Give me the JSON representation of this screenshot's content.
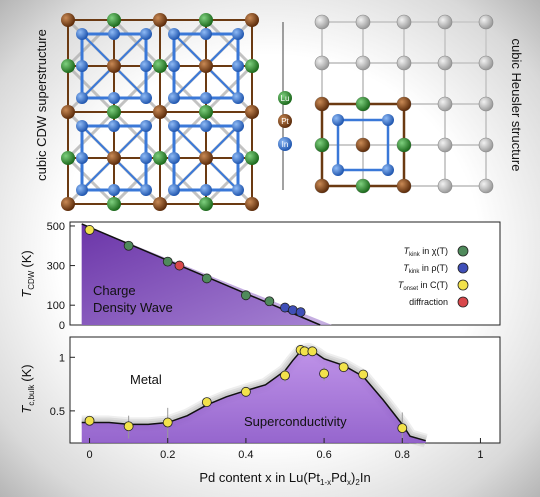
{
  "structures": {
    "left_label": "cubic CDW superstructure",
    "right_label": "cubic Heusler structure",
    "legend": [
      {
        "label": "Lu",
        "color": "#2e8b2e"
      },
      {
        "label": "Pt",
        "color": "#8b4513"
      },
      {
        "label": "In",
        "color": "#3a78d8"
      }
    ]
  },
  "colors": {
    "cdw_fill": "#7d4bb5",
    "cdw_fill_light": "#b69ad9",
    "sc_fill": "#b07fe0",
    "kink_chi": "#4f8a5b",
    "kink_rho": "#3f4fb8",
    "onset_c": "#f2e24b",
    "diffraction": "#d9484b"
  },
  "chart_data": [
    {
      "type": "scatter",
      "ylabel_main": "T",
      "ylabel_sub": "CDW",
      "ylabel_unit": "(K)",
      "ylim": [
        0,
        520
      ],
      "xlim": [
        -0.05,
        1.05
      ],
      "yticks": [
        0,
        100,
        300,
        500
      ],
      "yticklabels": [
        "0",
        "100",
        "300",
        "500"
      ],
      "region_label_line1": "Charge",
      "region_label_line2": "Density Wave",
      "boundary_line": {
        "x": [
          -0.02,
          0.59
        ],
        "y": [
          510,
          0
        ]
      },
      "legend": [
        {
          "main": "T",
          "sub": "kink",
          "rest": " in χ(T)",
          "key": "kink_chi"
        },
        {
          "main": "T",
          "sub": "kink",
          "rest": " in ρ(T)",
          "key": "kink_rho"
        },
        {
          "main": "T",
          "sub": "onset",
          "rest": " in C(T)",
          "key": "onset_c"
        },
        {
          "main": "",
          "sub": "",
          "rest": "diffraction",
          "key": "diffraction"
        }
      ],
      "series": [
        {
          "name": "T kink in χ(T)",
          "key": "kink_chi",
          "x": [
            0.1,
            0.2,
            0.3,
            0.4,
            0.46
          ],
          "y": [
            400,
            320,
            235,
            150,
            120
          ]
        },
        {
          "name": "T kink in ρ(T)",
          "key": "kink_rho",
          "x": [
            0.5,
            0.52,
            0.54
          ],
          "y": [
            88,
            75,
            65
          ]
        },
        {
          "name": "T onset in C(T)",
          "key": "onset_c",
          "x": [
            0.0
          ],
          "y": [
            480
          ]
        },
        {
          "name": "diffraction",
          "key": "diffraction",
          "x": [
            0.23
          ],
          "y": [
            300
          ]
        }
      ]
    },
    {
      "type": "scatter",
      "ylabel_main": "T",
      "ylabel_sub": "c,bulk",
      "ylabel_unit": "(K)",
      "ylog": true,
      "ylim": [
        0.33,
        1.3
      ],
      "xlim": [
        -0.05,
        1.05
      ],
      "yticks": [
        0.5,
        1
      ],
      "yticklabels": [
        "0.5",
        "1"
      ],
      "xticks": [
        0,
        0.2,
        0.4,
        0.6,
        0.8,
        1
      ],
      "xticklabels": [
        "0",
        "0.2",
        "0.4",
        "0.6",
        "0.8",
        "1"
      ],
      "xlabel": "Pd content x in Lu(Pt1-xPdx)2In",
      "xlabel_parts": {
        "a": "Pd content x in Lu(Pt",
        "sub1": "1-x",
        "b": "Pd",
        "sub2": "x",
        "c": ")",
        "sub3": "2",
        "d": "In"
      },
      "metal_label": "Metal",
      "sc_label": "Superconductivity",
      "series": [
        {
          "name": "T c,bulk",
          "key": "onset_c",
          "x": [
            0.0,
            0.1,
            0.2,
            0.3,
            0.4,
            0.5,
            0.54,
            0.55,
            0.57,
            0.6,
            0.65,
            0.7,
            0.8
          ],
          "y": [
            0.44,
            0.41,
            0.43,
            0.56,
            0.64,
            0.79,
            1.1,
            1.08,
            1.08,
            0.81,
            0.88,
            0.8,
            0.4
          ],
          "err": [
            0.02,
            0.06,
            0.09,
            0.02,
            0.02,
            0.06,
            0.04,
            0.03,
            0.04,
            0.07,
            0.03,
            0.04,
            0.09
          ]
        }
      ],
      "boundary_curve": {
        "x": [
          -0.02,
          0.05,
          0.1,
          0.15,
          0.2,
          0.25,
          0.3,
          0.35,
          0.4,
          0.45,
          0.5,
          0.52,
          0.54,
          0.56,
          0.58,
          0.6,
          0.65,
          0.7,
          0.75,
          0.8,
          0.82,
          0.86
        ],
        "y": [
          0.43,
          0.43,
          0.42,
          0.42,
          0.43,
          0.47,
          0.54,
          0.6,
          0.65,
          0.7,
          0.84,
          0.96,
          1.08,
          1.1,
          1.05,
          0.98,
          0.9,
          0.78,
          0.58,
          0.42,
          0.36,
          0.34
        ]
      }
    }
  ]
}
